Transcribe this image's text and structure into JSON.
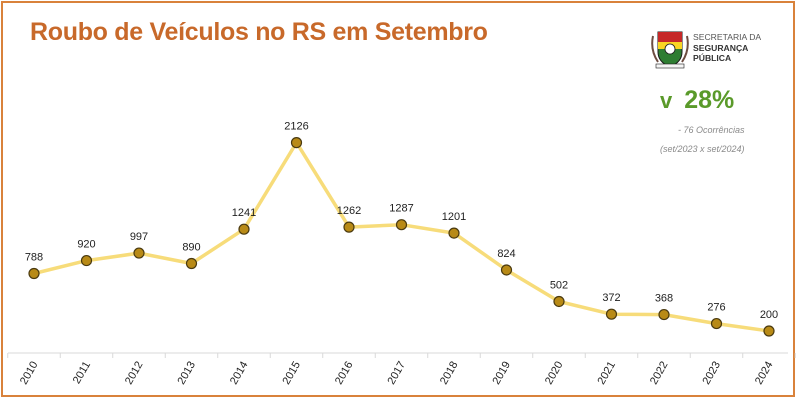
{
  "header": {
    "title": "Roubo de Veículos no RS em Setembro"
  },
  "organization": {
    "line1": "SECRETARIA DA",
    "line2": "SEGURANÇA",
    "line3": "PÚBLICA",
    "logo_icon": "rs-coat-of-arms-icon"
  },
  "summary": {
    "arrow_icon": "down-chevron-icon",
    "change": "28%",
    "occurrences": "- 76 Ocorrências",
    "comparison": "(set/2023 x set/2024)",
    "color": "#5a9a2a"
  },
  "colors": {
    "accent": "#d9823b",
    "title": "#c8692a",
    "line": "#f7dc7a",
    "marker_fill": "#b88a16",
    "marker_stroke": "#4a3a10"
  },
  "chart_data": {
    "type": "line",
    "title": "Roubo de Veículos no RS em Setembro",
    "categories": [
      "2010",
      "2011",
      "2012",
      "2013",
      "2014",
      "2015",
      "2016",
      "2017",
      "2018",
      "2019",
      "2020",
      "2021",
      "2022",
      "2023",
      "2024"
    ],
    "values": [
      788,
      920,
      997,
      890,
      1241,
      2126,
      1262,
      1287,
      1201,
      824,
      502,
      372,
      368,
      276,
      200
    ],
    "data_labels": true,
    "grid": false,
    "legend": "none",
    "xlabel": "",
    "ylabel": ""
  }
}
